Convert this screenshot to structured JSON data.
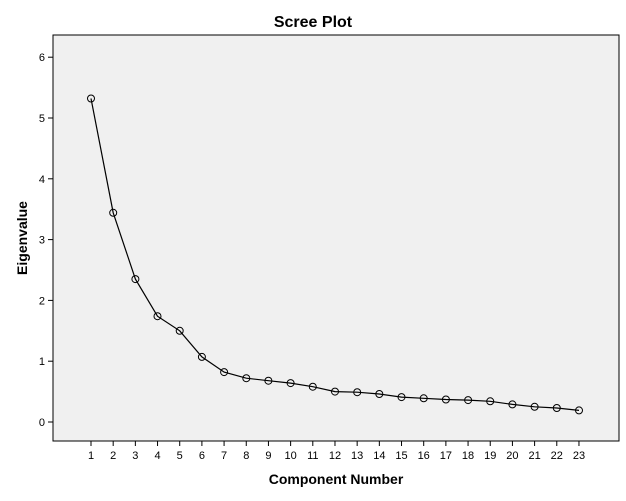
{
  "chart_data": {
    "type": "line",
    "title": "Scree Plot",
    "xlabel": "Component Number",
    "ylabel": "Eigenvalue",
    "x": [
      1,
      2,
      3,
      4,
      5,
      6,
      7,
      8,
      9,
      10,
      11,
      12,
      13,
      14,
      15,
      16,
      17,
      18,
      19,
      20,
      21,
      22,
      23
    ],
    "y_ticks": [
      0,
      1,
      2,
      3,
      4,
      5,
      6
    ],
    "ylim": [
      -0.2,
      6.3
    ],
    "grid": false,
    "markers": "open-circle",
    "series": [
      {
        "values": [
          5.32,
          3.44,
          2.35,
          1.74,
          1.5,
          1.07,
          0.82,
          0.72,
          0.68,
          0.64,
          0.58,
          0.5,
          0.49,
          0.46,
          0.41,
          0.39,
          0.37,
          0.36,
          0.34,
          0.29,
          0.25,
          0.23,
          0.19
        ]
      }
    ]
  }
}
